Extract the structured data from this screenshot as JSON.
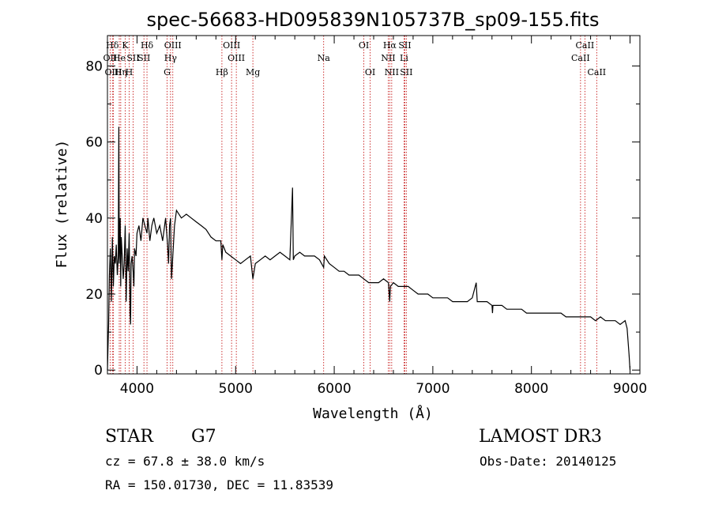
{
  "chart_data": {
    "type": "line",
    "title": "spec-56683-HD095839N105737B_sp09-155.fits",
    "xlabel": "Wavelength (Å)",
    "ylabel": "Flux (relative)",
    "xlim": [
      3700,
      9100
    ],
    "ylim": [
      -1,
      88
    ],
    "x_ticks": [
      4000,
      5000,
      6000,
      7000,
      8000,
      9000
    ],
    "y_ticks": [
      0,
      20,
      40,
      60,
      80
    ],
    "series": [
      {
        "name": "flux",
        "x": [
          3700,
          3705,
          3712,
          3720,
          3730,
          3740,
          3750,
          3760,
          3770,
          3780,
          3790,
          3800,
          3810,
          3815,
          3820,
          3830,
          3835,
          3840,
          3850,
          3860,
          3870,
          3880,
          3890,
          3900,
          3910,
          3920,
          3930,
          3935,
          3940,
          3950,
          3960,
          3968,
          3975,
          3990,
          4000,
          4020,
          4040,
          4060,
          4080,
          4101,
          4110,
          4130,
          4150,
          4170,
          4200,
          4230,
          4260,
          4290,
          4310,
          4320,
          4330,
          4340,
          4350,
          4380,
          4400,
          4450,
          4500,
          4550,
          4600,
          4650,
          4700,
          4750,
          4800,
          4850,
          4861,
          4870,
          4900,
          4950,
          5000,
          5050,
          5100,
          5150,
          5175,
          5200,
          5250,
          5300,
          5350,
          5400,
          5450,
          5500,
          5550,
          5577,
          5585,
          5600,
          5650,
          5700,
          5750,
          5800,
          5850,
          5893,
          5900,
          5950,
          6000,
          6050,
          6100,
          6150,
          6200,
          6250,
          6300,
          6350,
          6400,
          6450,
          6500,
          6550,
          6563,
          6570,
          6600,
          6650,
          6700,
          6750,
          6800,
          6850,
          6900,
          6950,
          7000,
          7050,
          7100,
          7150,
          7200,
          7250,
          7300,
          7350,
          7400,
          7440,
          7450,
          7500,
          7550,
          7600,
          7605,
          7610,
          7650,
          7700,
          7750,
          7800,
          7850,
          7900,
          7950,
          8000,
          8050,
          8100,
          8150,
          8200,
          8250,
          8300,
          8350,
          8400,
          8450,
          8500,
          8550,
          8600,
          8650,
          8700,
          8750,
          8800,
          8850,
          8900,
          8950,
          8970,
          8990,
          9000
        ],
        "values": [
          0,
          5,
          12,
          25,
          32,
          18,
          35,
          22,
          30,
          28,
          33,
          25,
          30,
          64,
          28,
          40,
          22,
          35,
          30,
          24,
          28,
          38,
          18,
          32,
          26,
          36,
          15,
          12,
          28,
          30,
          26,
          22,
          32,
          30,
          36,
          38,
          34,
          40,
          38,
          36,
          40,
          34,
          38,
          40,
          36,
          38,
          34,
          40,
          33,
          28,
          38,
          40,
          24,
          38,
          42,
          40,
          41,
          40,
          39,
          38,
          37,
          35,
          34,
          34,
          29,
          33,
          31,
          30,
          29,
          28,
          29,
          30,
          24,
          28,
          29,
          30,
          29,
          30,
          31,
          30,
          29,
          48,
          29,
          30,
          31,
          30,
          30,
          30,
          29,
          27,
          30,
          28,
          27,
          26,
          26,
          25,
          25,
          25,
          24,
          23,
          23,
          23,
          24,
          23,
          18,
          22,
          23,
          22,
          22,
          22,
          21,
          20,
          20,
          20,
          19,
          19,
          19,
          19,
          18,
          18,
          18,
          18,
          19,
          23,
          18,
          18,
          18,
          17,
          15,
          17,
          17,
          17,
          16,
          16,
          16,
          16,
          15,
          15,
          15,
          15,
          15,
          15,
          15,
          15,
          14,
          14,
          14,
          14,
          14,
          14,
          13,
          14,
          13,
          13,
          13,
          12,
          13,
          11,
          4,
          0
        ]
      }
    ],
    "spectral_lines": [
      {
        "name": "Hδ",
        "wavelength": 3750,
        "row": 1
      },
      {
        "name": "OII",
        "wavelength": 3727,
        "row": 2
      },
      {
        "name": "OIII",
        "wavelength": 3760,
        "row": 3
      },
      {
        "name": "He",
        "wavelength": 3820,
        "row": 2
      },
      {
        "name": "Hη",
        "wavelength": 3835,
        "row": 3
      },
      {
        "name": "K",
        "wavelength": 3880,
        "row": 1
      },
      {
        "name": "H",
        "wavelength": 3920,
        "row": 3
      },
      {
        "name": "SII",
        "wavelength": 3960,
        "row": 2
      },
      {
        "name": "Hδ",
        "wavelength": 4101,
        "row": 1
      },
      {
        "name": "SII",
        "wavelength": 4070,
        "row": 2
      },
      {
        "name": "OIII",
        "wavelength": 4363,
        "row": 1
      },
      {
        "name": "Hγ",
        "wavelength": 4340,
        "row": 2
      },
      {
        "name": "G",
        "wavelength": 4305,
        "row": 3
      },
      {
        "name": "Hβ",
        "wavelength": 4861,
        "row": 3
      },
      {
        "name": "OIII",
        "wavelength": 4959,
        "row": 1
      },
      {
        "name": "OIII",
        "wavelength": 5007,
        "row": 2
      },
      {
        "name": "Mg",
        "wavelength": 5175,
        "row": 3
      },
      {
        "name": "Na",
        "wavelength": 5893,
        "row": 2
      },
      {
        "name": "OI",
        "wavelength": 6300,
        "row": 1
      },
      {
        "name": "OI",
        "wavelength": 6364,
        "row": 3
      },
      {
        "name": "Hα",
        "wavelength": 6563,
        "row": 1
      },
      {
        "name": "NII",
        "wavelength": 6548,
        "row": 2
      },
      {
        "name": "NII",
        "wavelength": 6583,
        "row": 3
      },
      {
        "name": "SII",
        "wavelength": 6716,
        "row": 1
      },
      {
        "name": "Li",
        "wavelength": 6708,
        "row": 2
      },
      {
        "name": "SII",
        "wavelength": 6731,
        "row": 3
      },
      {
        "name": "CaII",
        "wavelength": 8542,
        "row": 1
      },
      {
        "name": "CaII",
        "wavelength": 8498,
        "row": 2
      },
      {
        "name": "CaII",
        "wavelength": 8662,
        "row": 3
      }
    ]
  },
  "info": {
    "class": "STAR",
    "subclass": "G7",
    "survey": "LAMOST DR3",
    "cz": "cz = 67.8 ± 38.0 km/s",
    "obs_date": "Obs-Date: 20140125",
    "radec": "RA = 150.01730, DEC =  11.83539"
  }
}
